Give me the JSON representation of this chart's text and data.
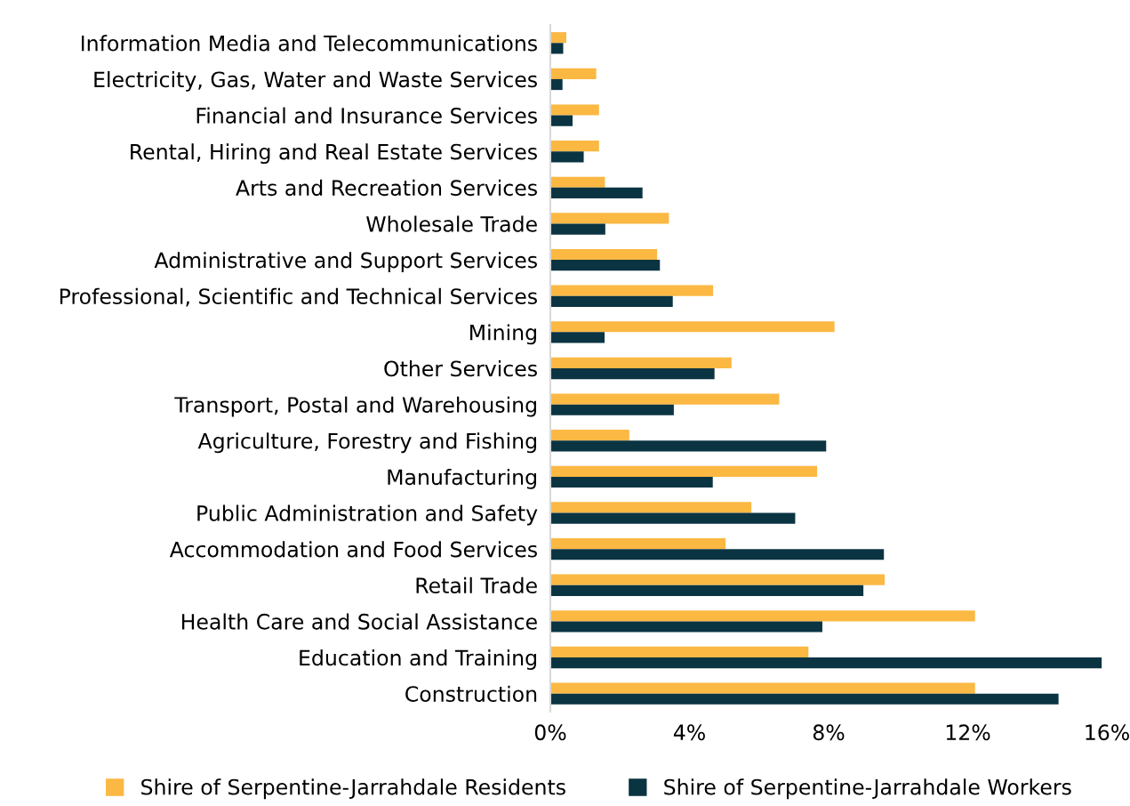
{
  "chart_data": {
    "type": "bar",
    "orientation": "horizontal",
    "categories": [
      "Information Media and Telecommunications",
      "Electricity, Gas, Water and Waste Services",
      "Financial and Insurance Services",
      "Rental, Hiring and Real Estate Services",
      "Arts and Recreation Services",
      "Wholesale Trade",
      "Administrative and Support Services",
      "Professional, Scientific and Technical Services",
      "Mining",
      "Other Services",
      "Transport, Postal and Warehousing",
      "Agriculture, Forestry and Fishing",
      "Manufacturing",
      "Public Administration and Safety",
      "Accommodation and Food Services",
      "Retail Trade",
      "Health Care and Social Assistance",
      "Education and Training",
      "Construction"
    ],
    "series": [
      {
        "name": "Shire of Serpentine-Jarrahdale Residents",
        "color": "#fbb843",
        "values": [
          0.46,
          1.32,
          1.4,
          1.4,
          1.57,
          3.41,
          3.07,
          4.68,
          8.17,
          5.21,
          6.58,
          2.27,
          7.67,
          5.78,
          5.04,
          9.61,
          12.21,
          7.42,
          12.21
        ]
      },
      {
        "name": "Shire of Serpentine-Jarrahdale Workers",
        "color": "#0b3442",
        "values": [
          0.37,
          0.35,
          0.64,
          0.96,
          2.65,
          1.58,
          3.15,
          3.52,
          1.56,
          4.72,
          3.55,
          7.93,
          4.67,
          7.04,
          9.59,
          9.0,
          7.82,
          15.85,
          14.61
        ]
      }
    ],
    "xlim": [
      0,
      16
    ],
    "xticks": [
      {
        "value": 0,
        "label": "0%"
      },
      {
        "value": 4,
        "label": "4%"
      },
      {
        "value": 8,
        "label": "8%"
      },
      {
        "value": 12,
        "label": "12%"
      },
      {
        "value": 16,
        "label": "16%"
      }
    ],
    "grid": false,
    "legend": "bottom"
  }
}
